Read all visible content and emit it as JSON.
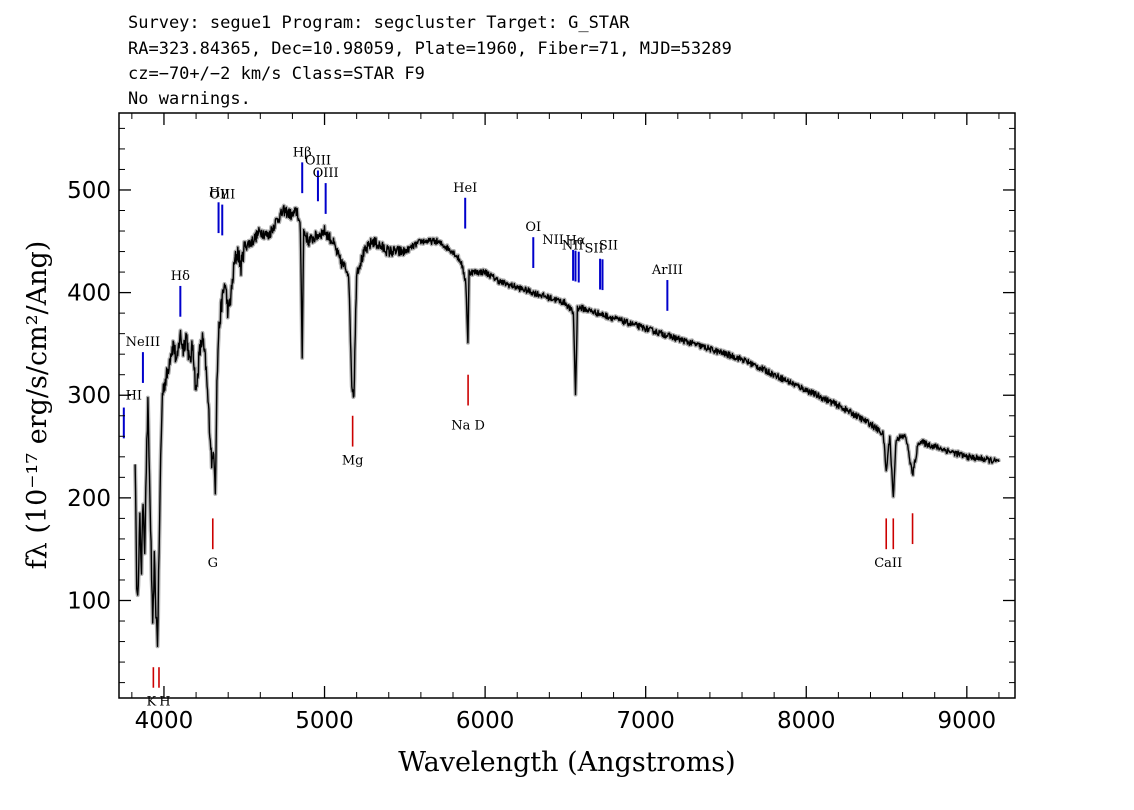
{
  "header": {
    "line1": "Survey: segue1 Program: segcluster Target: G_STAR",
    "line2": "RA=323.84365, Dec=10.98059, Plate=1960, Fiber=71, MJD=53289",
    "line3": "cz=−70+/−2 km/s Class=STAR F9",
    "line4": "No warnings."
  },
  "colors": {
    "emission": "#0000cc",
    "absorption": "#cc0000",
    "spectrum": "#000000",
    "error": "#b0b0b0"
  },
  "chart_data": {
    "type": "line",
    "xlabel": "Wavelength (Angstroms)",
    "ylabel": "fλ (10⁻¹⁷ erg/s/cm²/Ang)",
    "xlim": [
      3720,
      9300
    ],
    "ylim": [
      5,
      575
    ],
    "x_ticks": [
      4000,
      5000,
      6000,
      7000,
      8000,
      9000
    ],
    "y_ticks": [
      100,
      200,
      300,
      400,
      500
    ],
    "grid": false,
    "series": [
      {
        "x": [
          3820,
          3830,
          3840,
          3850,
          3860,
          3870,
          3880,
          3890,
          3900,
          3910,
          3920,
          3930,
          3940,
          3950,
          3960,
          3970,
          3980,
          3990,
          4000,
          4020,
          4040,
          4060,
          4080,
          4100,
          4120,
          4140,
          4160,
          4180,
          4200,
          4220,
          4240,
          4260,
          4280,
          4300,
          4310,
          4320,
          4330,
          4340,
          4360,
          4380,
          4400,
          4420,
          4440,
          4460,
          4480,
          4500,
          4550,
          4600,
          4650,
          4700,
          4750,
          4800,
          4830,
          4850,
          4861,
          4870,
          4900,
          4950,
          5000,
          5050,
          5100,
          5150,
          5170,
          5183,
          5200,
          5250,
          5300,
          5350,
          5400,
          5500,
          5600,
          5700,
          5800,
          5850,
          5880,
          5893,
          5900,
          5950,
          6000,
          6100,
          6200,
          6300,
          6400,
          6500,
          6550,
          6563,
          6575,
          6600,
          6700,
          6800,
          6900,
          7000,
          7200,
          7400,
          7600,
          7800,
          8000,
          8200,
          8400,
          8480,
          8498,
          8520,
          8542,
          8560,
          8620,
          8662,
          8700,
          8800,
          8900,
          9000,
          9100,
          9200
        ],
        "values": [
          240,
          120,
          110,
          180,
          130,
          200,
          150,
          230,
          290,
          220,
          150,
          70,
          140,
          90,
          60,
          150,
          240,
          300,
          310,
          320,
          340,
          350,
          330,
          360,
          345,
          360,
          330,
          350,
          300,
          340,
          355,
          330,
          280,
          230,
          250,
          210,
          310,
          360,
          390,
          410,
          380,
          400,
          430,
          440,
          425,
          445,
          450,
          460,
          455,
          470,
          480,
          475,
          480,
          460,
          340,
          460,
          450,
          455,
          460,
          450,
          430,
          420,
          310,
          300,
          420,
          440,
          450,
          445,
          440,
          440,
          450,
          450,
          440,
          430,
          410,
          350,
          420,
          420,
          420,
          410,
          405,
          400,
          395,
          390,
          380,
          300,
          385,
          385,
          380,
          375,
          370,
          365,
          355,
          345,
          335,
          320,
          305,
          290,
          272,
          262,
          225,
          260,
          200,
          258,
          260,
          222,
          255,
          250,
          245,
          240,
          238,
          235
        ]
      }
    ],
    "emission_lines": [
      {
        "label": "HI",
        "wavelength": 3750
      },
      {
        "label": "NeIII",
        "wavelength": 3869
      },
      {
        "label": "Hδ",
        "wavelength": 4102
      },
      {
        "label": "Hγ",
        "wavelength": 4340
      },
      {
        "label": "OIII",
        "wavelength": 4363
      },
      {
        "label": "Hβ",
        "wavelength": 4861
      },
      {
        "label": "OIII",
        "wavelength": 4959
      },
      {
        "label": "OIII",
        "wavelength": 5007
      },
      {
        "label": "HeI",
        "wavelength": 5876
      },
      {
        "label": "OI",
        "wavelength": 6300
      },
      {
        "label": "NII",
        "wavelength": 6548
      },
      {
        "label": "Hα",
        "wavelength": 6563
      },
      {
        "label": "NII",
        "wavelength": 6583
      },
      {
        "label": "SII",
        "wavelength": 6716
      },
      {
        "label": "SII",
        "wavelength": 6731
      },
      {
        "label": "ArIII",
        "wavelength": 7135
      }
    ],
    "absorption_lines": [
      {
        "label": "K",
        "wavelength": 3934
      },
      {
        "label": "H",
        "wavelength": 3969
      },
      {
        "label": "G",
        "wavelength": 4304
      },
      {
        "label": "Mg",
        "wavelength": 5175
      },
      {
        "label": "Na D",
        "wavelength": 5894
      },
      {
        "label": "CaII",
        "wavelength": 8498
      },
      {
        "label": "CaII",
        "wavelength": 8542
      },
      {
        "label": "CaII",
        "wavelength": 8662
      }
    ]
  }
}
